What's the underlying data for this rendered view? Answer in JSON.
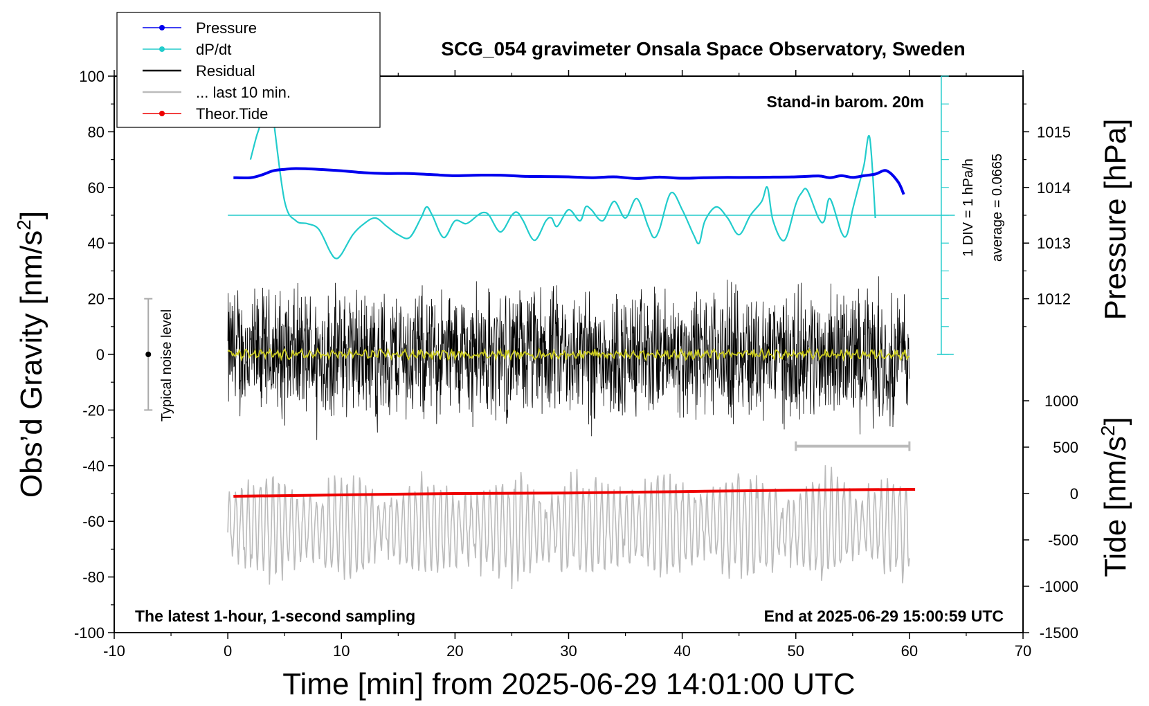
{
  "chart_data": {
    "type": "line",
    "title": "SCG_054 gravimeter Onsala Space Observatory, Sweden",
    "xlabel": "Time [min] from 2025-06-29 14:01:00 UTC",
    "ylabel_left": "Obs’d Gravity [nm/s",
    "ylabel_left_sup": "2",
    "ylabel_left_close": "]",
    "ylabel_right_top": "Pressure [hPa]",
    "ylabel_right_bottom": "Tide [nm/s",
    "ylabel_right_bottom_sup": "2",
    "ylabel_right_bottom_close": "]",
    "xlim": [
      -10,
      70
    ],
    "ylim_left": [
      -100,
      100
    ],
    "x_ticks": [
      "-10",
      "0",
      "10",
      "20",
      "30",
      "40",
      "50",
      "60",
      "70"
    ],
    "y_ticks_left": [
      "100",
      "80",
      "60",
      "40",
      "20",
      "0",
      "-20",
      "-40",
      "-60",
      "-80",
      "-100"
    ],
    "pressure_axis": {
      "ticks": [
        "1015",
        "1014",
        "1013",
        "1012"
      ],
      "values": [
        1015,
        1014,
        1013,
        1012
      ]
    },
    "tide_axis": {
      "ticks": [
        "1000",
        "500",
        "0",
        "-500",
        "-1000",
        "-1500"
      ],
      "values": [
        1000,
        500,
        0,
        -500,
        -1000,
        -1500
      ]
    },
    "annotations": {
      "stand_in": "Stand-in barom. 20m",
      "div_label": "1 DIV = 1 hPa/h",
      "average_label": "average = 0.0665",
      "noise_label": "Typical noise level",
      "latest": "The latest 1-hour, 1-second sampling",
      "end_at": "End at 2025-06-29 15:00:59 UTC"
    },
    "legend": [
      {
        "label": "Pressure",
        "color": "#0000ee",
        "marker": true
      },
      {
        "label": "dP/dt",
        "color": "#22cccc",
        "marker": true
      },
      {
        "label": "Residual",
        "color": "#000000",
        "marker": false
      },
      {
        "label": "... last 10 min.",
        "color": "#bbbbbb",
        "marker": false
      },
      {
        "label": "Theor.Tide",
        "color": "#ee0000",
        "marker": true
      }
    ],
    "series": [
      {
        "name": "Pressure",
        "color": "#0000ee",
        "axis": "left",
        "x": [
          0.5,
          2,
          3,
          4,
          5,
          6,
          8,
          10,
          12,
          14,
          16,
          18,
          20,
          22,
          24,
          26,
          28,
          30,
          32,
          34,
          36,
          38,
          40,
          42,
          44,
          46,
          48,
          50,
          52,
          53,
          54,
          55,
          56,
          57,
          58,
          59,
          59.5
        ],
        "y": [
          63.5,
          63.5,
          64.5,
          66,
          66.5,
          66.8,
          66.5,
          66,
          65.3,
          65,
          65,
          64.6,
          64.2,
          64.4,
          64.4,
          64,
          63.9,
          63.8,
          63.5,
          63.8,
          63.2,
          63.7,
          63.3,
          63.5,
          63.6,
          63.6,
          63.7,
          63.8,
          64.1,
          63.5,
          64.2,
          63.6,
          64.2,
          64.8,
          66,
          62,
          57.5
        ]
      },
      {
        "name": "dP/dt",
        "color": "#22cccc",
        "axis": "left",
        "baseline": 50,
        "x": [
          2,
          2.5,
          3,
          3.5,
          4,
          5,
          6,
          7,
          8,
          9,
          9.5,
          10,
          11,
          12,
          13,
          14,
          15,
          16,
          17,
          17.5,
          18,
          19,
          20,
          21,
          22,
          22.5,
          23,
          24,
          25,
          25.5,
          26,
          27,
          28,
          28.5,
          29,
          30,
          31,
          31.5,
          32,
          33,
          34,
          35,
          36,
          37,
          37.5,
          38,
          39,
          40,
          41,
          41.5,
          42,
          43,
          44,
          45,
          46,
          47,
          47.5,
          48,
          49,
          50,
          50.5,
          51,
          52,
          52.5,
          53,
          54,
          54.5,
          55,
          55.5,
          56,
          56.5,
          57
        ],
        "y": [
          70,
          78,
          85,
          100,
          85,
          55,
          48,
          47,
          45,
          37,
          34.5,
          36,
          43,
          47,
          49,
          46,
          43,
          42,
          49,
          53,
          50,
          42,
          48,
          47,
          50,
          51,
          50,
          44,
          50,
          51,
          48,
          41,
          48,
          49,
          46,
          52,
          48,
          53,
          52,
          48,
          55,
          49,
          56,
          46,
          42,
          45,
          58,
          52,
          43,
          40,
          48,
          53,
          49,
          43,
          50,
          55,
          60,
          48,
          41,
          54,
          58,
          59,
          49,
          48,
          56,
          44,
          43,
          52,
          60,
          68,
          78,
          49
        ]
      },
      {
        "name": "Theor.Tide",
        "color": "#ee0000",
        "axis": "left",
        "x": [
          0.5,
          10,
          20,
          30,
          40,
          50,
          60.5
        ],
        "y": [
          -51,
          -50.5,
          -50,
          -49.8,
          -49.3,
          -48.8,
          -48.5
        ]
      },
      {
        "name": "Residual",
        "color": "#000000",
        "axis": "left",
        "x_range": [
          0,
          60
        ],
        "approx_center": 0,
        "approx_amplitude": 30,
        "note": "high-frequency noise between about -35 and +32"
      },
      {
        "name": "Smoothed residual",
        "color": "#cccc22",
        "axis": "left",
        "x_range": [
          0,
          60
        ],
        "approx_center": 0,
        "approx_amplitude": 2
      },
      {
        "name": "... last 10 min.",
        "color": "#bbbbbb",
        "axis": "left",
        "x_range": [
          0,
          60
        ],
        "approx_center": -62,
        "approx_amplitude": 30,
        "note": "expanded view of the last 10 minutes"
      }
    ],
    "noise_bar": {
      "x": -7,
      "low": -20,
      "high": 20,
      "center": 0
    },
    "last10_bracket": {
      "x_start": 50,
      "x_end": 60,
      "y": -33
    }
  }
}
